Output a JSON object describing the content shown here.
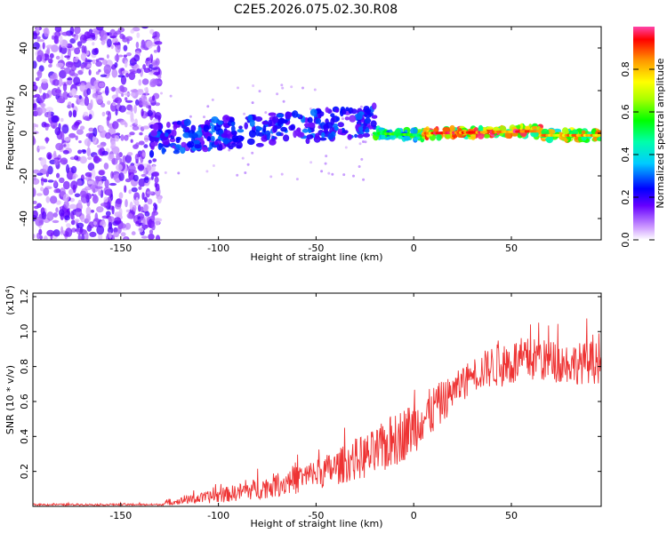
{
  "title": "C2E5.2026.075.02.30.R08",
  "colorbar": {
    "label": "Normalized spectral amplitude",
    "range": [
      0.0,
      1.0
    ],
    "ticks": [
      "0.0",
      "0.2",
      "0.4",
      "0.6",
      "0.8"
    ]
  },
  "chart_data": [
    {
      "type": "heatmap",
      "name": "spectrogram",
      "xlabel": "Height of straight line (km)",
      "ylabel": "Frequency (Hz)",
      "xlim": [
        -195,
        96
      ],
      "ylim": [
        -50,
        50
      ],
      "xticks": [
        "-150",
        "-100",
        "-50",
        "0",
        "50"
      ],
      "yticks": [
        "-40",
        "-20",
        "0",
        "20",
        "40"
      ],
      "noise_region_x": [
        -195,
        -130
      ],
      "band_segments": [
        {
          "x_start": -135,
          "x_end": -20,
          "freq_center_start": -3,
          "freq_center_end": 6,
          "amplitude": 0.3
        },
        {
          "x_start": -20,
          "x_end": 5,
          "freq_center_start": 0,
          "freq_center_end": -1,
          "amplitude": 0.6
        },
        {
          "x_start": 5,
          "x_end": 65,
          "freq_center_start": 0,
          "freq_center_end": 1,
          "amplitude": 0.95
        },
        {
          "x_start": 65,
          "x_end": 96,
          "freq_center_start": -1,
          "freq_center_end": -1,
          "amplitude": 0.85
        }
      ]
    },
    {
      "type": "line",
      "name": "snr",
      "xlabel": "Height of straight line (km)",
      "ylabel": "SNR (10 * v/v)",
      "multiplier": "(x10",
      "multiplier_exp": "4",
      "xlim": [
        -195,
        96
      ],
      "ylim": [
        0,
        1.22
      ],
      "xticks": [
        "-150",
        "-100",
        "-50",
        "0",
        "50"
      ],
      "yticks": [
        "0.2",
        "0.4",
        "0.6",
        "0.8",
        "1.0",
        "1.2"
      ],
      "series_color": "#ee3333",
      "trend_x": [
        -195,
        -130,
        -120,
        -100,
        -80,
        -60,
        -40,
        -30,
        -20,
        -10,
        0,
        10,
        20,
        30,
        40,
        50,
        60,
        70,
        80,
        96
      ],
      "trend_y": [
        0.01,
        0.01,
        0.03,
        0.06,
        0.1,
        0.15,
        0.22,
        0.27,
        0.3,
        0.38,
        0.45,
        0.55,
        0.65,
        0.75,
        0.8,
        0.82,
        0.84,
        0.83,
        0.82,
        0.82
      ],
      "spread_y": [
        0.005,
        0.005,
        0.02,
        0.04,
        0.06,
        0.08,
        0.1,
        0.12,
        0.14,
        0.16,
        0.15,
        0.14,
        0.1,
        0.1,
        0.12,
        0.14,
        0.13,
        0.12,
        0.12,
        0.12
      ]
    }
  ]
}
